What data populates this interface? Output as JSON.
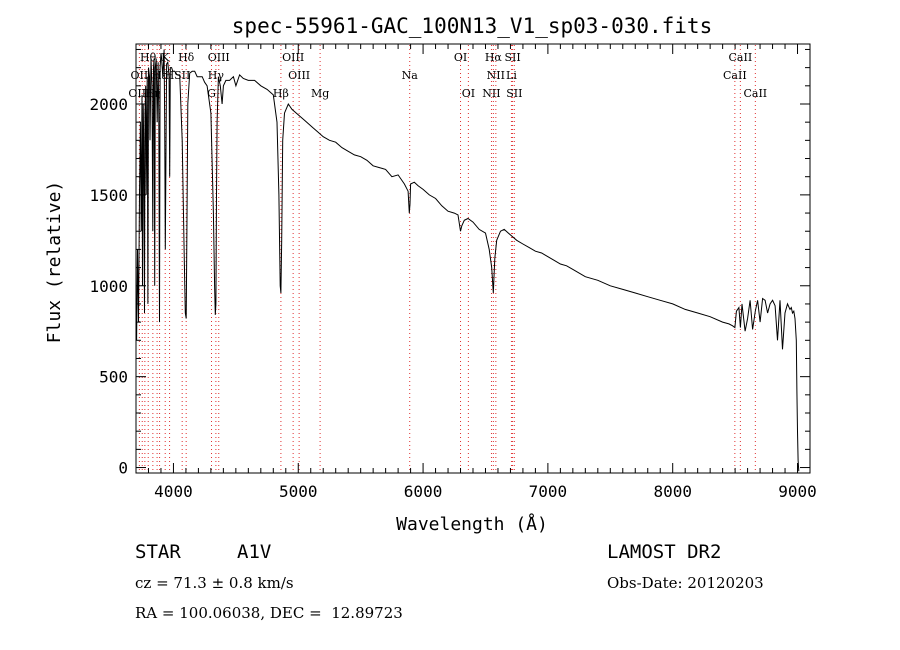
{
  "chart_data": {
    "type": "line",
    "title": "spec-55961-GAC_100N13_V1_sp03-030.fits",
    "xlabel": "Wavelength (Å)",
    "ylabel": "Flux (relative)",
    "xlim": [
      3700,
      9100
    ],
    "ylim": [
      -30,
      2330
    ],
    "xticks": [
      4000,
      5000,
      6000,
      7000,
      8000,
      9000
    ],
    "xtick_labels": [
      "4000",
      "5000",
      "6000",
      "7000",
      "8000",
      "9000"
    ],
    "yticks": [
      0,
      500,
      1000,
      1500,
      2000
    ],
    "ytick_labels": [
      "0",
      "500",
      "1000",
      "1500",
      "2000"
    ],
    "grid": false,
    "series": [
      {
        "x": [
          3700,
          3705,
          3712,
          3720,
          3728,
          3735,
          3742,
          3748,
          3752,
          3758,
          3762,
          3768,
          3772,
          3778,
          3782,
          3790,
          3795,
          3800,
          3808,
          3812,
          3820,
          3828,
          3835,
          3840,
          3845,
          3850,
          3855,
          3862,
          3870,
          3877,
          3883,
          3888,
          3893,
          3900,
          3905,
          3915,
          3925,
          3930,
          3935,
          3945,
          3955,
          3965,
          3970,
          3975,
          3985,
          3995,
          4010,
          4030,
          4050,
          4070,
          4085,
          4095,
          4102,
          4108,
          4115,
          4130,
          4150,
          4170,
          4190,
          4210,
          4230,
          4250,
          4270,
          4300,
          4320,
          4330,
          4335,
          4340,
          4345,
          4350,
          4360,
          4375,
          4390,
          4400,
          4420,
          4450,
          4480,
          4500,
          4530,
          4560,
          4600,
          4650,
          4700,
          4750,
          4800,
          4830,
          4845,
          4855,
          4861,
          4867,
          4875,
          4890,
          4920,
          4950,
          5000,
          5050,
          5100,
          5150,
          5200,
          5250,
          5300,
          5350,
          5400,
          5450,
          5500,
          5550,
          5600,
          5650,
          5700,
          5750,
          5800,
          5850,
          5880,
          5890,
          5895,
          5900,
          5930,
          5960,
          6000,
          6050,
          6100,
          6150,
          6200,
          6250,
          6280,
          6300,
          6310,
          6330,
          6360,
          6400,
          6450,
          6500,
          6530,
          6550,
          6563,
          6575,
          6590,
          6620,
          6650,
          6700,
          6750,
          6800,
          6850,
          6900,
          6950,
          7000,
          7050,
          7100,
          7150,
          7200,
          7300,
          7400,
          7500,
          7600,
          7700,
          7800,
          7900,
          8000,
          8100,
          8200,
          8300,
          8400,
          8450,
          8480,
          8498,
          8510,
          8530,
          8542,
          8555,
          8580,
          8600,
          8620,
          8640,
          8662,
          8680,
          8700,
          8720,
          8740,
          8760,
          8780,
          8800,
          8820,
          8840,
          8860,
          8870,
          8880,
          8900,
          8920,
          8940,
          8950,
          8960,
          8970,
          8980,
          8990,
          8995,
          9000,
          9005,
          9010
        ],
        "y": [
          750,
          700,
          1200,
          800,
          1500,
          1900,
          1300,
          2050,
          1000,
          2000,
          1800,
          850,
          1950,
          2100,
          1500,
          2150,
          900,
          2200,
          2150,
          1800,
          2250,
          2100,
          1300,
          2200,
          2250,
          1000,
          2200,
          2250,
          1900,
          2230,
          1950,
          800,
          2200,
          2280,
          2250,
          2150,
          2300,
          1900,
          1200,
          2220,
          2230,
          2150,
          1600,
          2200,
          2200,
          2180,
          2180,
          2160,
          2160,
          1800,
          1200,
          850,
          820,
          1300,
          2000,
          2170,
          2180,
          2180,
          2150,
          2150,
          2150,
          2120,
          2100,
          1950,
          1400,
          1000,
          840,
          900,
          1500,
          1900,
          2150,
          2100,
          2000,
          2100,
          2130,
          2130,
          2150,
          2100,
          2160,
          2140,
          2130,
          2130,
          2100,
          2080,
          2050,
          1900,
          1500,
          1000,
          960,
          1250,
          1800,
          1950,
          2000,
          1970,
          1940,
          1910,
          1880,
          1850,
          1820,
          1800,
          1790,
          1760,
          1740,
          1720,
          1710,
          1690,
          1660,
          1650,
          1640,
          1600,
          1610,
          1560,
          1520,
          1400,
          1450,
          1560,
          1570,
          1550,
          1530,
          1500,
          1480,
          1440,
          1410,
          1400,
          1390,
          1300,
          1330,
          1360,
          1370,
          1350,
          1310,
          1290,
          1200,
          1100,
          960,
          1150,
          1250,
          1300,
          1310,
          1280,
          1250,
          1230,
          1210,
          1190,
          1180,
          1160,
          1140,
          1120,
          1110,
          1090,
          1050,
          1030,
          1000,
          980,
          960,
          940,
          920,
          900,
          870,
          850,
          830,
          800,
          790,
          780,
          770,
          860,
          880,
          770,
          900,
          750,
          820,
          920,
          760,
          860,
          920,
          800,
          930,
          920,
          850,
          900,
          920,
          890,
          700,
          920,
          780,
          650,
          850,
          900,
          870,
          880,
          850,
          860,
          820,
          700,
          420,
          200,
          40,
          -20
        ]
      }
    ],
    "line_labels": [
      {
        "text": "Hθ",
        "wavelength": 3797
      },
      {
        "text": "K",
        "wavelength": 3934
      },
      {
        "text": "Hδ",
        "wavelength": 4102
      },
      {
        "text": "OII",
        "wavelength": 3727
      },
      {
        "text": "Hε",
        "wavelength": 3889
      },
      {
        "text": "SII",
        "wavelength": 4070
      },
      {
        "text": "H",
        "wavelength": 3969
      },
      {
        "text": "OIII",
        "wavelength": 4363
      },
      {
        "text": "Hγ",
        "wavelength": 4340
      },
      {
        "text": "OIII",
        "wavelength": 3727
      },
      {
        "text": "Hη",
        "wavelength": 3835
      },
      {
        "text": "G",
        "wavelength": 4305
      },
      {
        "text": "Hβ",
        "wavelength": 4861
      },
      {
        "text": "OIII",
        "wavelength": 4959
      },
      {
        "text": "OIII",
        "wavelength": 5007
      },
      {
        "text": "Mg",
        "wavelength": 5175
      },
      {
        "text": "Na",
        "wavelength": 5893
      },
      {
        "text": "OI",
        "wavelength": 6300
      },
      {
        "text": "OI",
        "wavelength": 6363
      },
      {
        "text": "Hα",
        "wavelength": 6563
      },
      {
        "text": "SII",
        "wavelength": 6717
      },
      {
        "text": "NII",
        "wavelength": 6583
      },
      {
        "text": "Li",
        "wavelength": 6708
      },
      {
        "text": "NII",
        "wavelength": 6548
      },
      {
        "text": "SII",
        "wavelength": 6731
      },
      {
        "text": "CaII",
        "wavelength": 8542
      },
      {
        "text": "CaII",
        "wavelength": 8498
      },
      {
        "text": "CaII",
        "wavelength": 8662
      }
    ],
    "marker_lines": [
      3727,
      3750,
      3771,
      3798,
      3835,
      3869,
      3889,
      3934,
      3969,
      4070,
      4102,
      4305,
      4340,
      4363,
      4861,
      4959,
      5007,
      5175,
      5893,
      6300,
      6363,
      6548,
      6563,
      6583,
      6708,
      6717,
      6731,
      8498,
      8542,
      8662
    ],
    "colors": {
      "spectrum": "#000000",
      "marker": "#e03030",
      "axes": "#000000",
      "background": "#ffffff"
    }
  },
  "info": {
    "object_class": "STAR",
    "subclass": "A1V",
    "survey": "LAMOST DR2",
    "velocity": "cz = 71.3 ± 0.8 km/s",
    "obs_date": "Obs-Date: 20120203",
    "coords": "RA = 100.06038, DEC =  12.89723"
  }
}
